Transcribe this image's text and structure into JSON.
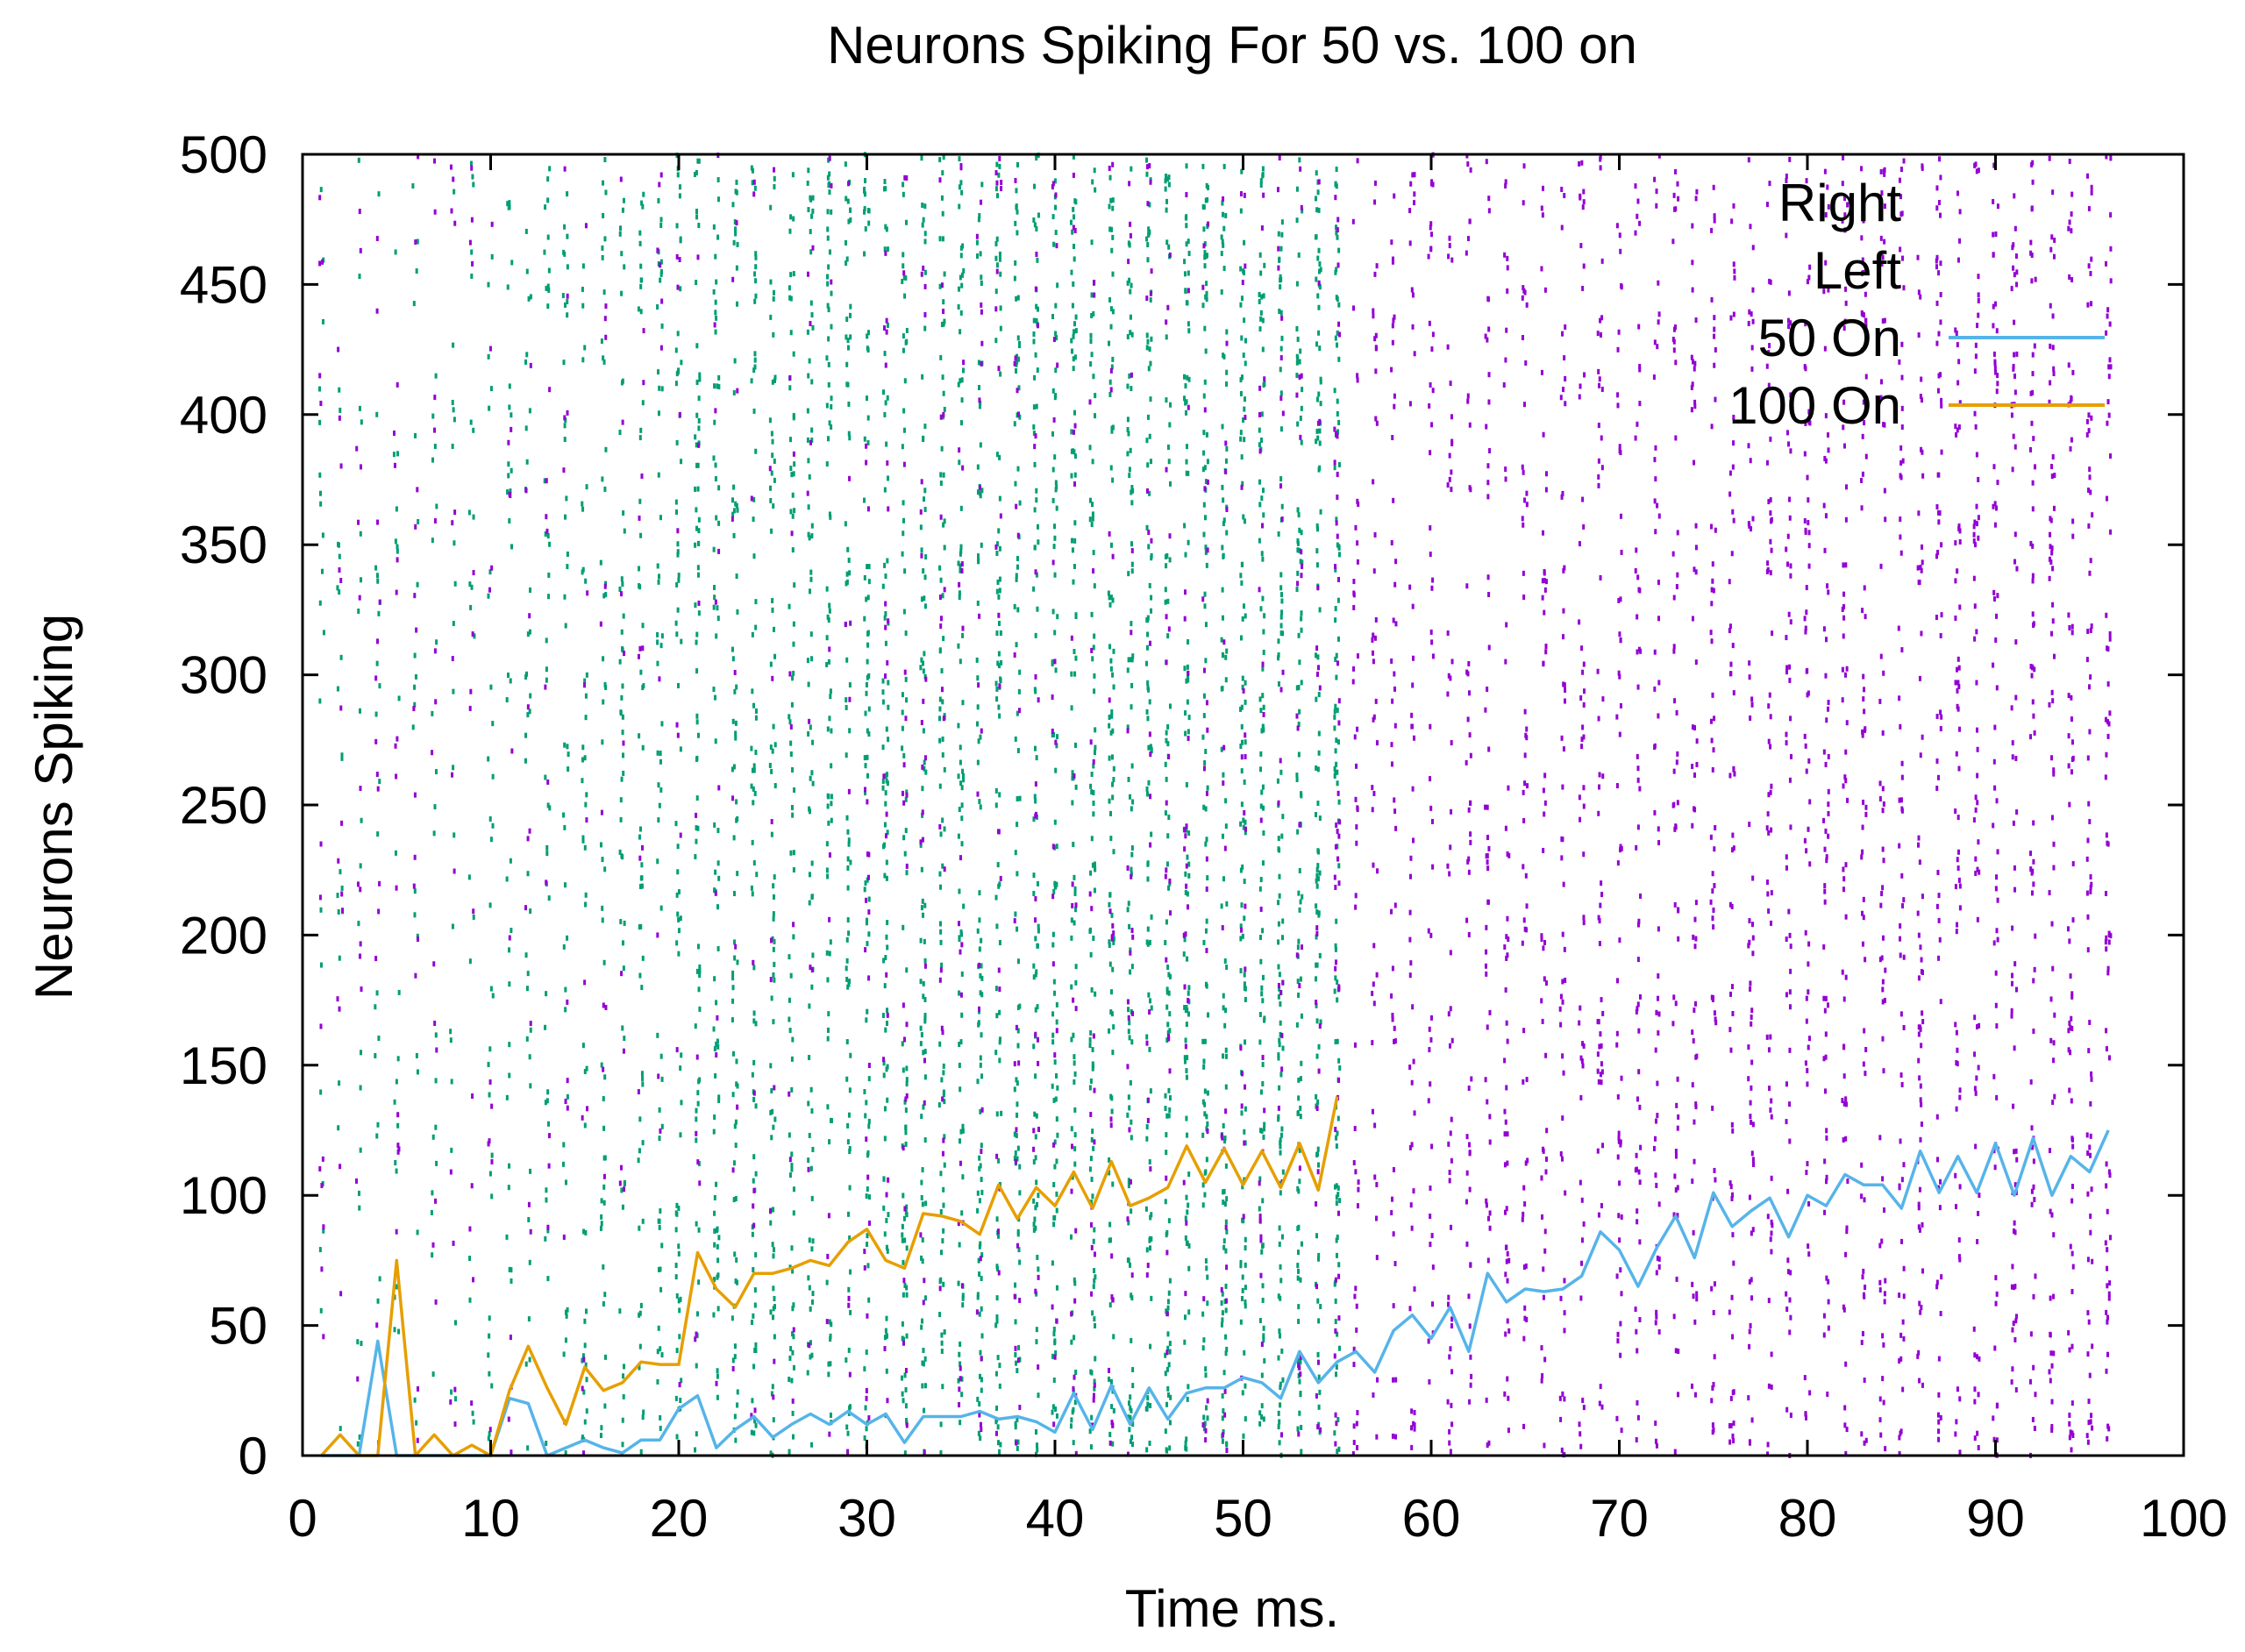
{
  "chart_data": {
    "type": "line",
    "title": "Neurons Spiking For 50 vs. 100 on",
    "xlabel": "Time ms.",
    "ylabel": "Neurons Spiking",
    "xlim": [
      0,
      100
    ],
    "ylim": [
      0,
      500
    ],
    "xticks": [
      "0",
      "10",
      "20",
      "30",
      "40",
      "50",
      "60",
      "70",
      "80",
      "90",
      "100"
    ],
    "yticks": [
      "0",
      "50",
      "100",
      "150",
      "200",
      "250",
      "300",
      "350",
      "400",
      "450",
      "500"
    ],
    "legend_position": "top-right",
    "raster": [
      {
        "name": "Right",
        "color": "#009e73",
        "x_range": [
          1,
          55
        ]
      },
      {
        "name": "Left",
        "color": "#9400d3",
        "x_range": [
          1,
          96
        ]
      }
    ],
    "series": [
      {
        "name": "50 On",
        "color": "#56b4e9",
        "x": [
          1,
          2,
          3,
          4,
          5,
          6,
          7,
          8,
          9,
          10,
          11,
          12,
          13,
          14,
          15,
          16,
          17,
          18,
          19,
          20,
          21,
          22,
          23,
          24,
          25,
          26,
          27,
          28,
          29,
          30,
          31,
          32,
          33,
          34,
          35,
          36,
          37,
          38,
          39,
          40,
          41,
          42,
          43,
          44,
          45,
          46,
          47,
          48,
          49,
          50,
          51,
          52,
          53,
          54,
          55,
          56,
          57,
          58,
          59,
          60,
          61,
          62,
          63,
          64,
          65,
          66,
          67,
          68,
          69,
          70,
          71,
          72,
          73,
          74,
          75,
          76,
          77,
          78,
          79,
          80,
          81,
          82,
          83,
          84,
          85,
          86,
          87,
          88,
          89,
          90,
          91,
          92,
          93,
          94,
          95,
          96
        ],
        "values": [
          0,
          0,
          0,
          44,
          0,
          0,
          0,
          0,
          0,
          0,
          22,
          20,
          0,
          3,
          6,
          3,
          1,
          6,
          6,
          18,
          23,
          3,
          10,
          15,
          7,
          12,
          16,
          12,
          17,
          12,
          16,
          5,
          15,
          15,
          15,
          17,
          14,
          15,
          13,
          9,
          24,
          10,
          27,
          12,
          26,
          14,
          24,
          26,
          26,
          30,
          28,
          22,
          40,
          28,
          36,
          40,
          32,
          48,
          54,
          45,
          57,
          40,
          70,
          59,
          64,
          63,
          64,
          69,
          86,
          79,
          65,
          80,
          92,
          76,
          101,
          88,
          94,
          99,
          84,
          100,
          96,
          108,
          104,
          104,
          95,
          117,
          101,
          115,
          101,
          120,
          100,
          122,
          100,
          115,
          109,
          125
        ]
      },
      {
        "name": "100 On",
        "color": "#e69f00",
        "x": [
          1,
          2,
          3,
          4,
          5,
          6,
          7,
          8,
          9,
          10,
          11,
          12,
          13,
          14,
          15,
          16,
          17,
          18,
          19,
          20,
          21,
          22,
          23,
          24,
          25,
          26,
          27,
          28,
          29,
          30,
          31,
          32,
          33,
          34,
          35,
          36,
          37,
          38,
          39,
          40,
          41,
          42,
          43,
          44,
          45,
          46,
          47,
          48,
          49,
          50,
          51,
          52,
          53,
          54,
          55
        ],
        "values": [
          0,
          8,
          0,
          0,
          75,
          0,
          8,
          0,
          4,
          0,
          25,
          42,
          26,
          12,
          34,
          25,
          28,
          36,
          35,
          35,
          78,
          64,
          57,
          70,
          70,
          72,
          75,
          73,
          82,
          87,
          75,
          72,
          93,
          92,
          90,
          85,
          104,
          91,
          103,
          96,
          109,
          95,
          113,
          96,
          99,
          103,
          119,
          105,
          118,
          104,
          117,
          103,
          120,
          102,
          138
        ]
      }
    ]
  }
}
